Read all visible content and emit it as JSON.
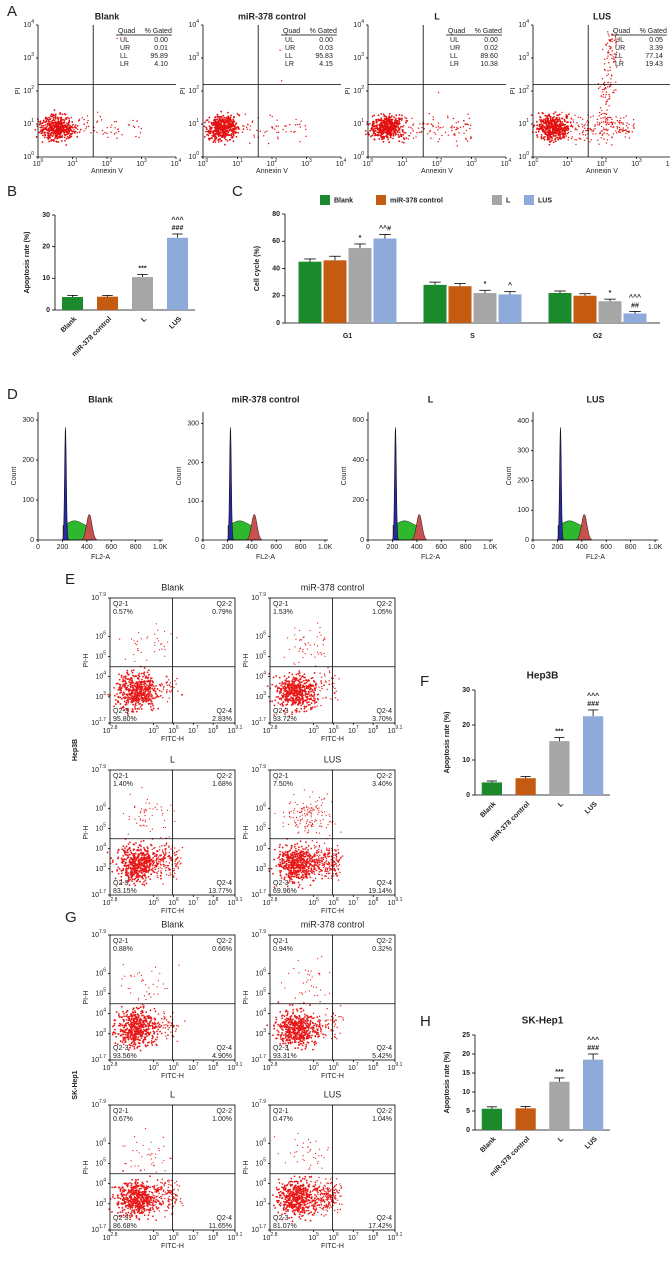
{
  "chart_data": [
    {
      "type": "bar",
      "panel_label": "B",
      "y_label": "Apoptosis rate (%)",
      "categories": [
        "Blank",
        "miR-378 control",
        "L",
        "LUS"
      ],
      "values": [
        4.1,
        4.2,
        10.4,
        22.8
      ],
      "errors": [
        0.5,
        0.4,
        0.8,
        1.2
      ],
      "colors": [
        "#1b8a2c",
        "#c55a11",
        "#a6a6a6",
        "#8eaadb"
      ],
      "annotations": [
        null,
        null,
        [
          "***"
        ],
        [
          "###",
          "^^^"
        ]
      ],
      "ylim": [
        0,
        30
      ],
      "yticks": [
        0,
        10,
        20,
        30
      ]
    },
    {
      "type": "bar",
      "panel_label": "C",
      "y_label": "Cell cycle (%)",
      "categories": [
        "G1",
        "S",
        "G2"
      ],
      "legend": "top",
      "series": [
        {
          "name": "Blank",
          "color": "#1b8a2c",
          "values": [
            45,
            28,
            22
          ],
          "errors": [
            2,
            2,
            1.5
          ],
          "annotations": [
            null,
            null,
            null
          ]
        },
        {
          "name": "miR-378 control",
          "color": "#c55a11",
          "values": [
            46,
            27,
            20
          ],
          "errors": [
            3,
            2,
            1.5
          ],
          "annotations": [
            null,
            null,
            null
          ]
        },
        {
          "name": "L",
          "color": "#a6a6a6",
          "values": [
            55,
            22,
            16
          ],
          "errors": [
            3,
            2,
            1.5
          ],
          "annotations": [
            [
              "*"
            ],
            [
              "*"
            ],
            [
              "*"
            ]
          ]
        },
        {
          "name": "LUS",
          "color": "#8eaadb",
          "values": [
            62,
            21,
            7
          ],
          "errors": [
            3,
            2,
            1.5
          ],
          "annotations": [
            [
              "^^#"
            ],
            [
              "^"
            ],
            [
              "##",
              "^^^"
            ]
          ]
        }
      ],
      "ylim": [
        0,
        80
      ],
      "yticks": [
        0,
        20,
        40,
        60,
        80
      ]
    },
    {
      "type": "bar",
      "panel_label": "F",
      "title": "Hep3B",
      "y_label": "Apoptosis rate (%)",
      "categories": [
        "Blank",
        "miR-378 control",
        "L",
        "LUS"
      ],
      "values": [
        3.6,
        4.8,
        15.4,
        22.5
      ],
      "errors": [
        0.4,
        0.5,
        1.0,
        1.8
      ],
      "colors": [
        "#1b8a2c",
        "#c55a11",
        "#a6a6a6",
        "#8eaadb"
      ],
      "annotations": [
        null,
        null,
        [
          "***"
        ],
        [
          "###",
          "^^^"
        ]
      ],
      "ylim": [
        0,
        30
      ],
      "yticks": [
        0,
        10,
        20,
        30
      ]
    },
    {
      "type": "bar",
      "panel_label": "H",
      "title": "SK-Hep1",
      "y_label": "Apoptosis rate (%)",
      "categories": [
        "Blank",
        "miR-378 control",
        "L",
        "LUS"
      ],
      "values": [
        5.6,
        5.7,
        12.7,
        18.5
      ],
      "errors": [
        0.5,
        0.5,
        1.0,
        1.5
      ],
      "colors": [
        "#1b8a2c",
        "#c55a11",
        "#a6a6a6",
        "#8eaadb"
      ],
      "annotations": [
        null,
        null,
        [
          "***"
        ],
        [
          "###",
          "^^^"
        ]
      ],
      "ylim": [
        0,
        25
      ],
      "yticks": [
        0,
        5,
        10,
        15,
        20,
        25
      ]
    }
  ],
  "annexin_panel": {
    "letter": "A",
    "x_label": "Annexin V",
    "y_label": "PI",
    "tick_base": "10",
    "ticks": [
      "0",
      "1",
      "2",
      "3",
      "4"
    ],
    "stats_header": [
      "Quad",
      "% Gated"
    ],
    "plots": [
      {
        "title": "Blank",
        "stats": [
          [
            "UL",
            "0.00"
          ],
          [
            "UR",
            "0.01"
          ],
          [
            "LL",
            "95.89"
          ],
          [
            "LR",
            "4.10"
          ]
        ]
      },
      {
        "title": "miR-378 control",
        "stats": [
          [
            "UL",
            "0.00"
          ],
          [
            "UR",
            "0.03"
          ],
          [
            "LL",
            "95.83"
          ],
          [
            "LR",
            "4.15"
          ]
        ]
      },
      {
        "title": "L",
        "stats": [
          [
            "UL",
            "0.00"
          ],
          [
            "UR",
            "0.02"
          ],
          [
            "LL",
            "89.60"
          ],
          [
            "LR",
            "10.38"
          ]
        ]
      },
      {
        "title": "LUS",
        "stats": [
          [
            "UL",
            "0.05"
          ],
          [
            "UR",
            "3.39"
          ],
          [
            "LL",
            "77.14"
          ],
          [
            "LR",
            "19.43"
          ]
        ]
      }
    ]
  },
  "cell_cycle_panel": {
    "letter": "D",
    "x_label": "FL2-A",
    "y_label": "Count",
    "xlim": [
      0,
      1024
    ],
    "xticks": [
      0,
      200,
      400,
      600,
      800,
      {
        "value": 1000,
        "label": "1.0K"
      }
    ],
    "plots": [
      {
        "title": "Blank",
        "ylim": [
          0,
          320
        ],
        "yticks": [
          0,
          100,
          200,
          300
        ]
      },
      {
        "title": "miR-378 control",
        "ylim": [
          0,
          330
        ],
        "yticks": [
          0,
          100,
          200,
          300
        ]
      },
      {
        "title": "L",
        "ylim": [
          0,
          640
        ],
        "yticks": [
          0,
          200,
          400,
          600
        ]
      },
      {
        "title": "LUS",
        "ylim": [
          0,
          430
        ],
        "yticks": [
          0,
          100,
          200,
          300,
          400
        ]
      }
    ]
  },
  "fitc_panels": [
    {
      "letter": "E",
      "cell_line": "Hep3B",
      "x_label": "FITC-H",
      "y_label": "PI-H",
      "tick_base": "10",
      "xticks": [
        "2.8",
        "5",
        "6",
        "7",
        "8",
        "9.1"
      ],
      "yticks": [
        "1.7",
        "3",
        "4",
        "5",
        "6",
        "7.9"
      ],
      "plots": [
        {
          "title": "Blank",
          "quadrants": [
            [
              "Q2-1",
              "0.57%"
            ],
            [
              "Q2-2",
              "0.79%"
            ],
            [
              "Q2-3",
              "95.80%"
            ],
            [
              "Q2-4",
              "2.83%"
            ]
          ]
        },
        {
          "title": "miR-378 control",
          "quadrants": [
            [
              "Q2-1",
              "1.53%"
            ],
            [
              "Q2-2",
              "1.05%"
            ],
            [
              "Q2-3",
              "93.72%"
            ],
            [
              "Q2-4",
              "3.70%"
            ]
          ]
        },
        {
          "title": "L",
          "quadrants": [
            [
              "Q2-1",
              "1.40%"
            ],
            [
              "Q2-2",
              "1.68%"
            ],
            [
              "Q2-3",
              "83.15%"
            ],
            [
              "Q2-4",
              "13.77%"
            ]
          ]
        },
        {
          "title": "LUS",
          "quadrants": [
            [
              "Q2-1",
              "7.50%"
            ],
            [
              "Q2-2",
              "3.40%"
            ],
            [
              "Q2-3",
              "69.96%"
            ],
            [
              "Q2-4",
              "19.14%"
            ]
          ]
        }
      ]
    },
    {
      "letter": "G",
      "cell_line": "SK-Hep1",
      "x_label": "FITC-H",
      "y_label": "PI-H",
      "tick_base": "10",
      "xticks": [
        "2.8",
        "5",
        "6",
        "7",
        "8",
        "9.1"
      ],
      "yticks": [
        "1.7",
        "3",
        "4",
        "5",
        "6",
        "7.9"
      ],
      "plots": [
        {
          "title": "Blank",
          "quadrants": [
            [
              "Q2-1",
              "0.88%"
            ],
            [
              "Q2-2",
              "0.66%"
            ],
            [
              "Q2-3",
              "93.56%"
            ],
            [
              "Q2-4",
              "4.90%"
            ]
          ]
        },
        {
          "title": "miR-378 control",
          "quadrants": [
            [
              "Q2-1",
              "0.94%"
            ],
            [
              "Q2-2",
              "0.32%"
            ],
            [
              "Q2-3",
              "93.31%"
            ],
            [
              "Q2-4",
              "5.42%"
            ]
          ]
        },
        {
          "title": "L",
          "quadrants": [
            [
              "Q2-1",
              "0.67%"
            ],
            [
              "Q2-2",
              "1.00%"
            ],
            [
              "Q2-3",
              "86.68%"
            ],
            [
              "Q2-4",
              "11.65%"
            ]
          ]
        },
        {
          "title": "LUS",
          "quadrants": [
            [
              "Q2-1",
              "0.47%"
            ],
            [
              "Q2-2",
              "1.04%"
            ],
            [
              "Q2-3",
              "81.07%"
            ],
            [
              "Q2-4",
              "17.42%"
            ]
          ]
        }
      ]
    }
  ]
}
